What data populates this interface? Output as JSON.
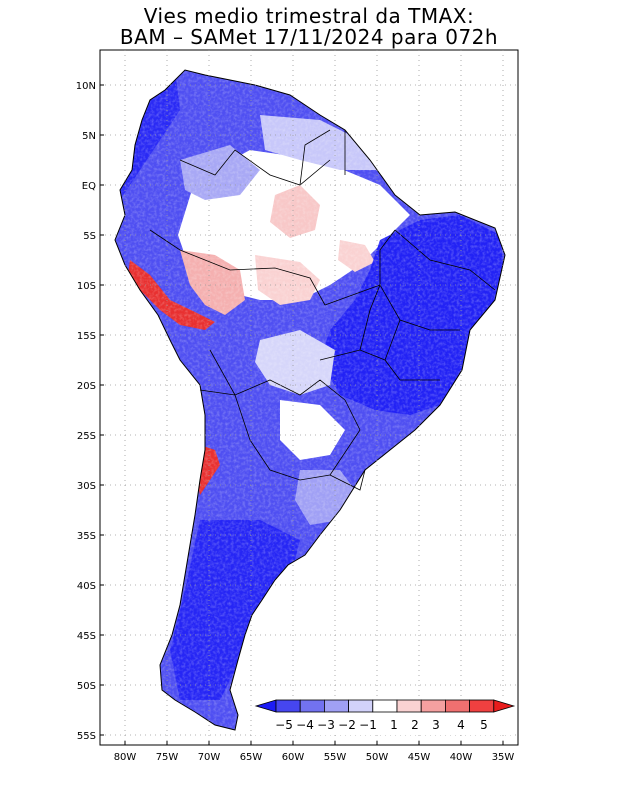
{
  "title": {
    "line1": "Vies medio trimestral da TMAX:",
    "line2": "BAM – SAMet 17/11/2024  para 072h"
  },
  "lat_labels": [
    "10N",
    "5N",
    "EQ",
    "5S",
    "10S",
    "15S",
    "20S",
    "25S",
    "30S",
    "35S",
    "40S",
    "45S",
    "50S",
    "55S"
  ],
  "lon_labels": [
    "80W",
    "75W",
    "70W",
    "65W",
    "60W",
    "55W",
    "50W",
    "45W",
    "40W",
    "35W"
  ],
  "colorbar": {
    "labels": [
      "−5",
      "−4",
      "−3",
      "−2",
      "−1",
      "1",
      "2",
      "3",
      "4",
      "5"
    ],
    "colors": [
      "#1c1cf5",
      "#4646f0",
      "#7272f0",
      "#a0a0f5",
      "#d2d2fa",
      "#ffffff",
      "#fad2d2",
      "#f5a0a0",
      "#f07070",
      "#f04040",
      "#e81c1c"
    ]
  }
}
